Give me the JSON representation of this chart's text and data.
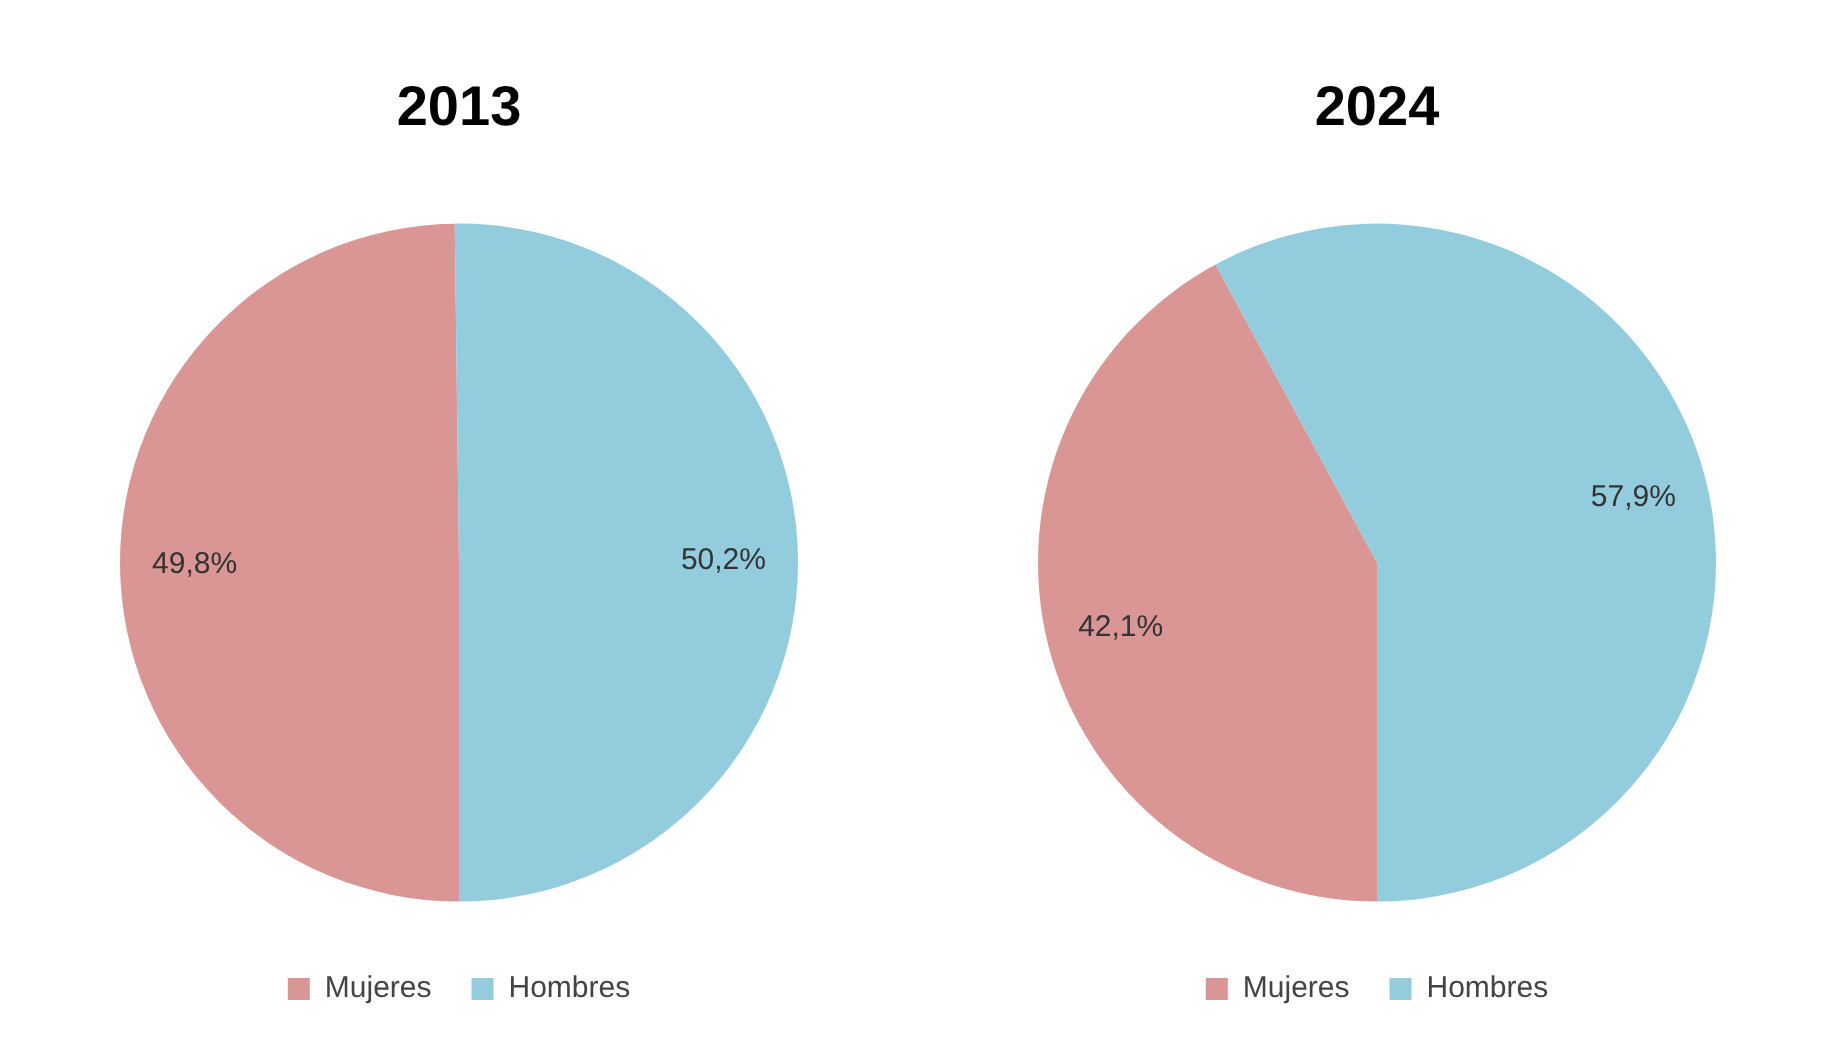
{
  "chart_data": [
    {
      "type": "pie",
      "title": "2013",
      "categories": [
        "Mujeres",
        "Hombres"
      ],
      "values": [
        49.8,
        50.2
      ],
      "colors": [
        "#d99694",
        "#93cddd"
      ],
      "value_labels": [
        "49,8%",
        "50,2%"
      ],
      "legend": "bottom"
    },
    {
      "type": "pie",
      "title": "2024",
      "categories": [
        "Mujeres",
        "Hombres"
      ],
      "values": [
        42.1,
        57.9
      ],
      "colors": [
        "#d99694",
        "#93cddd"
      ],
      "value_labels": [
        "42,1%",
        "57,9%"
      ],
      "legend": "bottom"
    }
  ]
}
